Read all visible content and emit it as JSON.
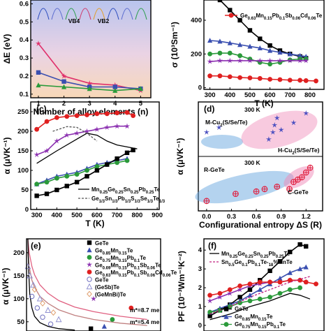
{
  "chart_data": [
    {
      "id": "a",
      "type": "line",
      "xlabel": "Number of alloy elements (n)",
      "ylabel": "ΔE (eV)",
      "xticks": [
        "1",
        "2",
        "3",
        "4",
        "5"
      ],
      "yticks": [
        "0.1",
        "0.2",
        "0.3",
        "0.4",
        "0.5",
        "0.6"
      ],
      "xlim": [
        0.7,
        5.4
      ],
      "ylim": [
        0.08,
        0.66
      ],
      "annotations": [
        "VB4",
        "VB2"
      ],
      "series": [
        {
          "color": "#e0306b",
          "marker": "star",
          "x": [
            1,
            2,
            3,
            4,
            5
          ],
          "y": [
            0.38,
            0.2,
            0.16,
            0.15,
            0.12
          ]
        },
        {
          "color": "#3a4fb0",
          "marker": "square",
          "x": [
            1,
            2,
            3,
            4,
            5
          ],
          "y": [
            0.22,
            0.17,
            0.14,
            0.14,
            0.13
          ]
        },
        {
          "color": "#2a9a3a",
          "marker": "triangle",
          "x": [
            1,
            2,
            3,
            4,
            5
          ],
          "y": [
            0.15,
            0.14,
            0.13,
            0.12,
            0.13
          ]
        }
      ]
    },
    {
      "id": "b",
      "type": "line",
      "xlabel": "T (K)",
      "ylabel": "σ (10³Sm⁻¹)",
      "xticks": [
        "300",
        "400",
        "500",
        "600",
        "700",
        "800"
      ],
      "yticks": [
        "0",
        "200",
        "400"
      ],
      "xlim": [
        270,
        870
      ],
      "ylim": [
        -10,
        520
      ],
      "legend": [
        "Ge0.63Mn0.15Pb0.1Sb0.06Cd0.06Te"
      ],
      "series": [
        {
          "color": "#000000",
          "marker": "square",
          "x": [
            300,
            350,
            400,
            450,
            500,
            550,
            600,
            650,
            700,
            750,
            780
          ],
          "y": [
            560,
            520,
            460,
            400,
            340,
            290,
            250,
            220,
            200,
            185,
            175
          ]
        },
        {
          "color": "#3a4fb0",
          "marker": "triangle",
          "x": [
            300,
            350,
            400,
            450,
            500,
            550,
            600,
            650,
            700,
            750,
            780
          ],
          "y": [
            280,
            275,
            265,
            255,
            245,
            235,
            220,
            210,
            200,
            190,
            185
          ]
        },
        {
          "color": "#2a9a3a",
          "marker": "circle",
          "x": [
            300,
            350,
            400,
            450,
            500,
            550,
            600,
            650,
            700,
            750,
            780
          ],
          "y": [
            200,
            205,
            205,
            190,
            170,
            150,
            140,
            150,
            165,
            170,
            170
          ]
        },
        {
          "color": "#8b2fb0",
          "marker": "star",
          "x": [
            300,
            350,
            400,
            450,
            500,
            550,
            600,
            650,
            700,
            750,
            780
          ],
          "y": [
            155,
            160,
            160,
            160,
            160,
            160,
            160,
            160,
            160,
            160,
            160
          ]
        },
        {
          "color": "#e02020",
          "marker": "circle",
          "x": [
            300,
            350,
            400,
            450,
            500,
            550,
            600,
            650,
            700,
            750,
            780,
            830
          ],
          "y": [
            70,
            70,
            65,
            60,
            58,
            55,
            50,
            48,
            45,
            44,
            42,
            40
          ]
        }
      ]
    },
    {
      "id": "c",
      "type": "line",
      "xlabel": "T (K)",
      "ylabel": "α (μVK⁻¹)",
      "xticks": [
        "300",
        "400",
        "500",
        "600",
        "700",
        "800",
        "900"
      ],
      "yticks": [
        "0",
        "50",
        "100",
        "150",
        "200",
        "250"
      ],
      "xlim": [
        270,
        910
      ],
      "ylim": [
        0,
        275
      ],
      "legend": [
        "Mn0.25Ge0.25Sn0.25Pb0.25Te",
        "Ge1/3Sn1/3Pb1/3S1/3Se1/3Te1/3"
      ],
      "series": [
        {
          "color": "#e02020",
          "marker": "circle",
          "x": [
            300,
            350,
            400,
            450,
            500,
            550,
            600,
            650,
            700,
            750,
            780
          ],
          "y": [
            205,
            225,
            235,
            238,
            240,
            242,
            245,
            245,
            247,
            248,
            240
          ]
        },
        {
          "color": "#8b2fb0",
          "marker": "star",
          "x": [
            300,
            350,
            400,
            450,
            500,
            550,
            600,
            650,
            700,
            750
          ],
          "y": [
            140,
            150,
            175,
            190,
            195,
            200,
            205,
            210,
            213,
            213
          ]
        },
        {
          "color": "#3a4fb0",
          "marker": "triangle",
          "x": [
            300,
            350,
            400,
            450,
            500,
            550,
            600,
            650,
            700,
            750
          ],
          "y": [
            65,
            75,
            85,
            90,
            95,
            105,
            115,
            120,
            125,
            130
          ]
        },
        {
          "color": "#2a9a3a",
          "marker": "circle",
          "x": [
            300,
            350,
            400,
            450,
            500,
            550,
            600,
            650,
            700,
            750
          ],
          "y": [
            65,
            70,
            80,
            85,
            90,
            100,
            110,
            115,
            120,
            125
          ]
        },
        {
          "color": "#000000",
          "marker": "square",
          "x": [
            300,
            350,
            400,
            450,
            500,
            550,
            600,
            650,
            700,
            750,
            780
          ],
          "y": [
            35,
            40,
            50,
            60,
            70,
            85,
            100,
            115,
            130,
            145,
            152
          ]
        },
        {
          "color": "#000000",
          "marker": "none",
          "dash": false,
          "x": [
            300,
            400,
            500,
            550,
            600,
            650,
            700,
            750,
            800
          ],
          "y": [
            118,
            150,
            180,
            195,
            190,
            175,
            165,
            160,
            155
          ]
        },
        {
          "color": "#555555",
          "marker": "none",
          "dash": true,
          "x": [
            380,
            450,
            500,
            550,
            600
          ],
          "y": [
            200,
            212,
            210,
            195,
            175
          ]
        }
      ]
    },
    {
      "id": "d",
      "type": "scatter",
      "xlabel": "Configurational entropy ΔS (R)",
      "ylabel": "α (μVK⁻¹)",
      "xticks": [
        "0.0",
        "0.3",
        "0.6",
        "0.9",
        "1.2"
      ],
      "xlim": [
        -0.1,
        1.4
      ],
      "annotations": [
        "300 K",
        "M-Cu2(S/Se/Te)",
        "H-Cu2(S/Se/Te)",
        "300 K",
        "R-GeTe",
        "C-GeTe"
      ],
      "groups": [
        {
          "name": "upper",
          "color": "#4a4fc0",
          "marker": "star",
          "x": [
            0.0,
            0.15,
            0.75,
            0.8,
            0.82,
            0.85,
            0.9,
            1.05,
            1.2
          ],
          "y": [
            0.45,
            0.55,
            0.3,
            0.45,
            0.6,
            0.75,
            0.5,
            0.65,
            0.85
          ]
        },
        {
          "name": "lower",
          "color": "#e02040",
          "marker": "circle-cross",
          "x": [
            0.0,
            0.35,
            0.6,
            0.7,
            0.85,
            1.0,
            1.05,
            1.1,
            1.15,
            1.2,
            1.25
          ],
          "y": [
            0.15,
            0.3,
            0.35,
            0.4,
            0.45,
            0.4,
            0.55,
            0.6,
            0.65,
            0.75,
            0.85
          ]
        }
      ]
    },
    {
      "id": "e",
      "type": "scatter",
      "ylabel": "α (μVK⁻¹)",
      "yticks": [
        "50",
        "100",
        "150",
        "200"
      ],
      "ylim": [
        30,
        230
      ],
      "legend": [
        "GeTe",
        "Ge0.85Mn0.15Te",
        "Ge0.75Mn0.15Pb0.1Te",
        "Ge0.69Mn0.15Pb0.1Sb0.06Te",
        "Ge0.63Mn0.15Pb0.1Sb0.06Cd0.06Te",
        "GeTe",
        "(GeSb)Te",
        "(GeMnBi)Te"
      ],
      "annotations": [
        "m*=8.7 me",
        "m*=5.4 me"
      ],
      "curves": [
        {
          "color": "#e06080",
          "x": [
            0.05,
            0.1,
            0.2,
            0.3,
            0.5,
            0.8,
            1.2,
            1.8,
            2.5,
            3.5,
            4.5
          ],
          "y": [
            230,
            200,
            170,
            152,
            130,
            112,
            96,
            82,
            72,
            62,
            55
          ]
        },
        {
          "color": "#c08080",
          "x": [
            0.05,
            0.1,
            0.2,
            0.3,
            0.5,
            0.8,
            1.2,
            1.8,
            2.5,
            3.5,
            4.5
          ],
          "y": [
            200,
            170,
            140,
            125,
            105,
            90,
            76,
            64,
            55,
            47,
            42
          ]
        },
        {
          "color": "#000000",
          "x": [
            0.05,
            0.08,
            0.12,
            0.2,
            0.3,
            0.5,
            0.8,
            1.2,
            1.8
          ],
          "y": [
            230,
            160,
            110,
            80,
            62,
            48,
            40,
            35,
            32
          ]
        }
      ],
      "points": [
        {
          "color": "#000000",
          "marker": "square",
          "x": [
            2.4
          ],
          "y": [
            35
          ]
        },
        {
          "color": "#3a4fb0",
          "marker": "triangle",
          "x": [
            2.9
          ],
          "y": [
            40
          ]
        },
        {
          "color": "#2a9a3a",
          "marker": "circle",
          "x": [
            3.2
          ],
          "y": [
            55
          ]
        },
        {
          "color": "#8b2fb0",
          "marker": "star",
          "x": [
            2.5
          ],
          "y": [
            100
          ]
        },
        {
          "color": "#e02020",
          "marker": "circle",
          "x": [
            3.9
          ],
          "y": [
            80
          ]
        },
        {
          "color": "#7070c0",
          "marker": "open-circle",
          "x": [
            0.2,
            0.4,
            0.6,
            0.9
          ],
          "y": [
            105,
            80,
            60,
            45
          ]
        },
        {
          "color": "#9090d0",
          "marker": "open-triangle",
          "x": [
            0.05,
            0.12,
            0.25,
            0.5,
            0.8,
            1.2
          ],
          "y": [
            170,
            150,
            130,
            100,
            75,
            55
          ]
        },
        {
          "color": "#e0a070",
          "marker": "open-diamond",
          "x": [
            0.3,
            0.6,
            1.0
          ],
          "y": [
            120,
            90,
            70
          ]
        }
      ]
    },
    {
      "id": "f",
      "type": "line",
      "ylabel": "PF (10⁻³Wm⁻¹K⁻²)",
      "yticks": [
        "0",
        "1",
        "2",
        "3",
        "4"
      ],
      "xlim": [
        270,
        870
      ],
      "ylim": [
        -0.3,
        4.6
      ],
      "legend": [
        "Mn0.25Ge0.25Sn0.25Pb0.25Te",
        "Sn0.5Ge0.1Pb0.1Te-18%MnTe",
        "GeTe",
        "Ge0.85Mn0.15Te",
        "Ge0.75Mn0.15Pb0.1Te"
      ],
      "series": [
        {
          "color": "#000000",
          "marker": "square",
          "x": [
            300,
            350,
            400,
            450,
            500,
            550,
            600,
            650,
            700,
            750,
            780
          ],
          "y": [
            0.5,
            0.8,
            1.1,
            1.5,
            1.9,
            2.4,
            2.9,
            3.4,
            3.9,
            4.3,
            4.2
          ]
        },
        {
          "color": "#3a4fb0",
          "marker": "triangle",
          "x": [
            300,
            350,
            400,
            450,
            500,
            550,
            600,
            650,
            700,
            750,
            780
          ],
          "y": [
            0.7,
            0.9,
            1.1,
            1.3,
            1.6,
            1.9,
            2.2,
            2.5,
            2.8,
            3.0,
            3.1
          ]
        },
        {
          "color": "#8b2fb0",
          "marker": "star",
          "x": [
            300,
            350,
            400,
            450,
            500,
            550,
            600,
            650,
            700,
            750,
            780
          ],
          "y": [
            1.3,
            1.5,
            1.7,
            1.9,
            2.1,
            2.2,
            2.3,
            2.3,
            2.4,
            2.4,
            2.3
          ]
        },
        {
          "color": "#e02020",
          "marker": "circle",
          "x": [
            300,
            350,
            400,
            450,
            500,
            550,
            600,
            650,
            700,
            750,
            780,
            830
          ],
          "y": [
            1.6,
            1.7,
            1.9,
            2.1,
            2.2,
            2.3,
            2.3,
            2.3,
            2.4,
            2.4,
            2.3,
            2.2
          ]
        },
        {
          "color": "#2a9a3a",
          "marker": "circle",
          "x": [
            300,
            350,
            400,
            450,
            500,
            550,
            600,
            650,
            700,
            750
          ],
          "y": [
            0.7,
            0.8,
            1.0,
            1.2,
            1.3,
            1.4,
            1.5,
            1.7,
            1.9,
            2.0
          ]
        },
        {
          "color": "#000000",
          "marker": "none",
          "dash": false,
          "x": [
            300,
            400,
            500,
            600,
            650,
            700,
            750,
            800
          ],
          "y": [
            0.3,
            0.6,
            1.0,
            1.3,
            1.5,
            1.7,
            1.6,
            1.4
          ]
        },
        {
          "color": "#c02080",
          "marker": "none",
          "dash": true,
          "x": [
            300,
            400,
            500,
            600,
            700,
            800
          ],
          "y": [
            0.6,
            1.0,
            1.5,
            1.9,
            2.3,
            2.6
          ]
        }
      ]
    }
  ]
}
